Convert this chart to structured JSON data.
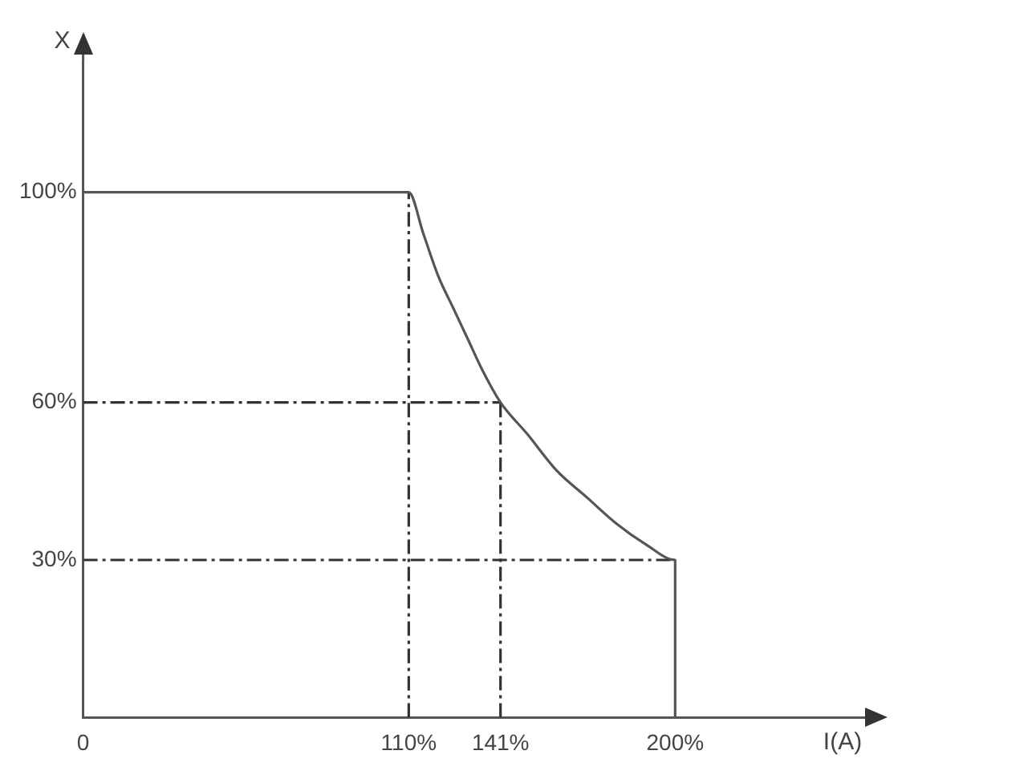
{
  "chart_data": {
    "type": "line",
    "xlabel": "I(A)",
    "ylabel": "X",
    "xlim": [
      0,
      262
    ],
    "ylim": [
      0,
      125
    ],
    "xticks": [
      {
        "value": 0,
        "label": "0"
      },
      {
        "value": 110,
        "label": "110%"
      },
      {
        "value": 141,
        "label": "141%"
      },
      {
        "value": 200,
        "label": "200%"
      }
    ],
    "yticks": [
      {
        "value": 30,
        "label": "30%"
      },
      {
        "value": 60,
        "label": "60%"
      },
      {
        "value": 100,
        "label": "100%"
      }
    ],
    "grid": false,
    "legend": false,
    "marker": "none",
    "series": [
      {
        "color": "#555555",
        "line_style": "solid",
        "x": [
          0,
          110,
          115,
          120,
          125,
          130,
          135,
          141,
          150,
          160,
          170,
          180,
          190,
          200,
          200
        ],
        "values": [
          100,
          100,
          92,
          84,
          78,
          72,
          66,
          60,
          54,
          47,
          42,
          37,
          33,
          30,
          0
        ]
      },
      {
        "color": "#333333",
        "line_style": "dashed",
        "x": [
          110,
          110
        ],
        "values": [
          0,
          100
        ]
      },
      {
        "color": "#333333",
        "line_style": "dashed",
        "x": [
          141,
          141
        ],
        "values": [
          0,
          60
        ]
      },
      {
        "color": "#333333",
        "line_style": "dashed",
        "x": [
          0,
          141
        ],
        "values": [
          60,
          60
        ]
      },
      {
        "color": "#333333",
        "line_style": "dashed",
        "x": [
          0,
          200
        ],
        "values": [
          30,
          30
        ]
      }
    ]
  }
}
